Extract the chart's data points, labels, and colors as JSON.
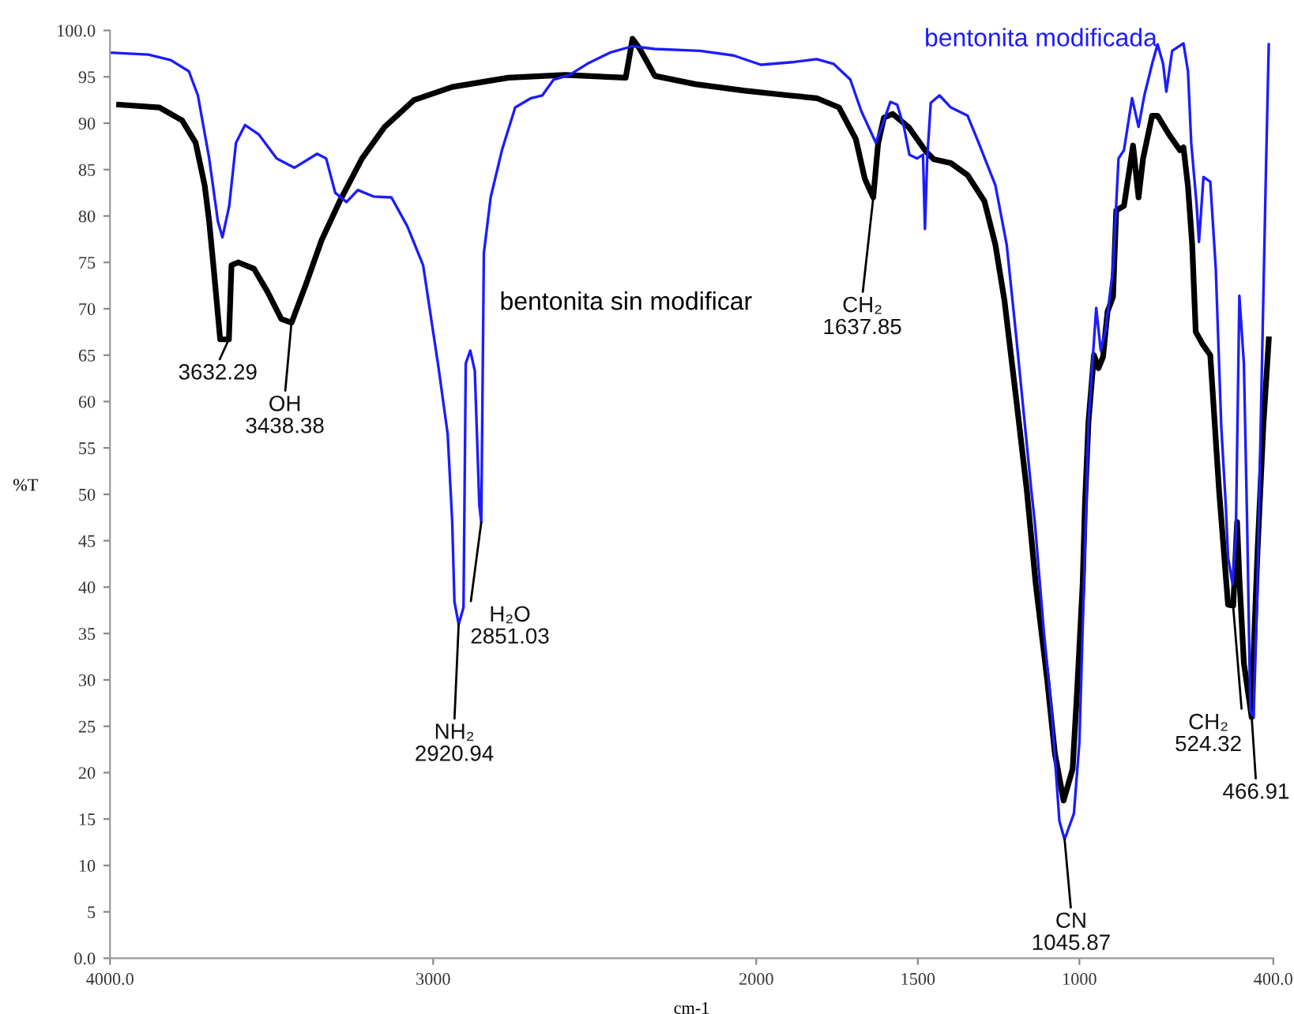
{
  "chart_data": {
    "type": "line",
    "xlabel": "cm-1",
    "ylabel": "%T",
    "xlim": [
      4000,
      400
    ],
    "xticks": [
      {
        "value": 4000,
        "label": "4000.0"
      },
      3000,
      2000,
      1500,
      1000,
      {
        "value": 400,
        "label": "400.0"
      }
    ],
    "ylim": [
      0,
      100
    ],
    "yticks": [
      {
        "value": 0,
        "label": "0.0"
      },
      5,
      10,
      15,
      20,
      25,
      30,
      35,
      40,
      45,
      50,
      55,
      60,
      65,
      70,
      75,
      80,
      85,
      90,
      95,
      {
        "value": 100,
        "label": "100.0"
      }
    ],
    "grid": false,
    "legend": false,
    "line_style": "solid",
    "marker": "none",
    "series": [
      {
        "name": "bentonita sin modificar",
        "color": "#000000",
        "x": [
          3972,
          3847,
          3777,
          3735,
          3707,
          3693,
          3679,
          3659,
          3632,
          3624,
          3603,
          3554,
          3512,
          3470,
          3438,
          3394,
          3345,
          3289,
          3220,
          3150,
          3059,
          2941,
          2767,
          2592,
          2404,
          2383,
          2362,
          2314,
          2188,
          2035,
          1900,
          1813,
          1744,
          1692,
          1664,
          1638,
          1623,
          1605,
          1578,
          1529,
          1474,
          1450,
          1398,
          1346,
          1294,
          1260,
          1232,
          1197,
          1163,
          1135,
          1100,
          1076,
          1049,
          1021,
          1007,
          990,
          983,
          972,
          955,
          941,
          927,
          913,
          896,
          886,
          862,
          834,
          817,
          803,
          775,
          758,
          723,
          689,
          678,
          664,
          651,
          640,
          619,
          595,
          568,
          540,
          524,
          512,
          505,
          491,
          467,
          464,
          449,
          431,
          414
        ],
        "values": [
          92.0,
          91.7,
          90.3,
          87.9,
          83.3,
          79.4,
          74.3,
          66.7,
          66.7,
          74.7,
          75.0,
          74.3,
          71.8,
          68.9,
          68.5,
          72.6,
          77.4,
          81.6,
          86.2,
          89.6,
          92.5,
          93.9,
          94.9,
          95.2,
          94.9,
          99.1,
          98.1,
          95.1,
          94.2,
          93.5,
          93.0,
          92.7,
          91.7,
          88.3,
          84.0,
          82.0,
          87.8,
          90.6,
          91.0,
          89.6,
          86.9,
          86.1,
          85.7,
          84.4,
          81.6,
          76.9,
          70.9,
          60.7,
          50.5,
          40.3,
          30.1,
          22.1,
          17.0,
          20.4,
          28.9,
          40.3,
          48.8,
          57.8,
          65.0,
          63.6,
          64.8,
          69.7,
          71.3,
          80.6,
          81.1,
          87.6,
          82.0,
          86.2,
          90.8,
          90.8,
          88.8,
          87.1,
          87.4,
          83.2,
          76.9,
          67.5,
          66.2,
          65.0,
          50.5,
          38.1,
          38.0,
          47.0,
          41.0,
          31.8,
          26.0,
          30.0,
          43.7,
          57.3,
          66.7
        ]
      },
      {
        "name": "bentonita modificada",
        "color": "#1c1cff",
        "x": [
          4000,
          3881,
          3812,
          3756,
          3728,
          3693,
          3666,
          3652,
          3631,
          3610,
          3582,
          3540,
          3484,
          3429,
          3359,
          3331,
          3303,
          3268,
          3233,
          3185,
          3129,
          3080,
          3031,
          2983,
          2955,
          2941,
          2934,
          2921,
          2906,
          2899,
          2885,
          2871,
          2857,
          2851,
          2843,
          2822,
          2787,
          2746,
          2697,
          2662,
          2627,
          2578,
          2523,
          2453,
          2383,
          2314,
          2174,
          2070,
          1986,
          1882,
          1813,
          1761,
          1709,
          1675,
          1630,
          1612,
          1585,
          1564,
          1543,
          1526,
          1502,
          1484,
          1478,
          1471,
          1460,
          1433,
          1398,
          1346,
          1312,
          1260,
          1225,
          1197,
          1173,
          1149,
          1138,
          1110,
          1086,
          1062,
          1046,
          1017,
          1000,
          986,
          979,
          972,
          958,
          948,
          934,
          920,
          896,
          879,
          862,
          837,
          817,
          799,
          775,
          758,
          741,
          731,
          713,
          678,
          664,
          654,
          637,
          630,
          616,
          595,
          578,
          561,
          547,
          540,
          526,
          516,
          505,
          491,
          481,
          471,
          461,
          450,
          437,
          423,
          414
        ],
        "values": [
          97.6,
          97.4,
          96.8,
          95.6,
          93.0,
          86.2,
          79.4,
          77.7,
          81.1,
          87.9,
          89.8,
          88.8,
          86.2,
          85.2,
          86.7,
          86.2,
          82.5,
          81.5,
          82.8,
          82.1,
          82.0,
          78.9,
          74.7,
          63.6,
          56.5,
          47.1,
          38.4,
          36.0,
          37.8,
          64.1,
          65.5,
          63.3,
          48.8,
          47.0,
          76.0,
          82.0,
          87.1,
          91.7,
          92.7,
          93.0,
          94.7,
          95.2,
          96.4,
          97.6,
          98.3,
          98.0,
          97.8,
          97.3,
          96.3,
          96.6,
          96.9,
          96.4,
          94.7,
          91.3,
          87.9,
          89.6,
          92.3,
          92.0,
          89.6,
          86.6,
          86.2,
          86.6,
          78.6,
          86.2,
          92.2,
          93.0,
          91.7,
          90.8,
          87.9,
          83.3,
          76.9,
          67.5,
          59.0,
          50.5,
          47.0,
          35.2,
          26.7,
          14.8,
          12.8,
          15.6,
          23.3,
          40.3,
          48.8,
          57.7,
          65.0,
          70.1,
          65.5,
          67.5,
          74.3,
          86.2,
          87.1,
          92.7,
          89.6,
          93.0,
          96.4,
          98.5,
          96.4,
          93.4,
          97.8,
          98.6,
          95.6,
          87.9,
          81.1,
          77.2,
          84.2,
          83.7,
          74.3,
          57.3,
          48.8,
          43.2,
          40.3,
          45.4,
          71.4,
          64.1,
          47.0,
          26.7,
          25.9,
          38.6,
          60.7,
          84.5,
          98.5
        ]
      }
    ],
    "annotations": [
      {
        "text": "3632.29",
        "x": 3632.29,
        "y": 66.7
      },
      {
        "text": "OH\n3438.38",
        "x": 3438.38,
        "y": 68.5
      },
      {
        "text": "NH₂\n2920.94",
        "x": 2920.94,
        "y": 36.0
      },
      {
        "text": "H₂O\n2851.03",
        "x": 2851.03,
        "y": 47.0
      },
      {
        "text": "CH₂\n1637.85",
        "x": 1637.85,
        "y": 82.0
      },
      {
        "text": "CN\n1045.87",
        "x": 1045.87,
        "y": 12.8
      },
      {
        "text": "CH₂\n524.32",
        "x": 524.32,
        "y": 38.0
      },
      {
        "text": "466.91",
        "x": 466.91,
        "y": 26.0
      }
    ]
  }
}
